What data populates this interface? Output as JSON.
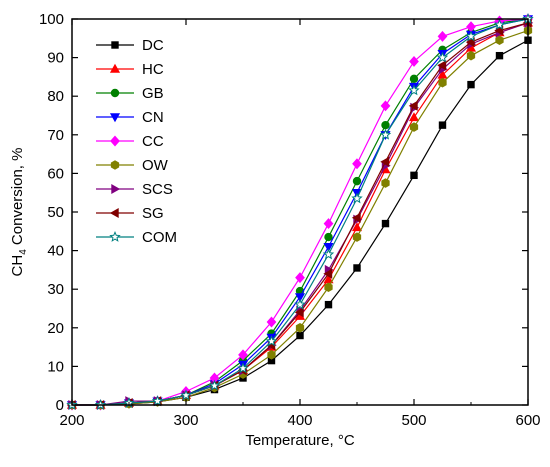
{
  "chart_data": {
    "type": "line",
    "xlabel": "Temperature, °C",
    "ylabel_main": "CH",
    "ylabel_sub": "4",
    "ylabel_rest": " Conversion, %",
    "xlim": [
      200,
      600
    ],
    "ylim": [
      0,
      100
    ],
    "xticks": [
      200,
      300,
      400,
      500,
      600
    ],
    "yticks": [
      0,
      10,
      20,
      30,
      40,
      50,
      60,
      70,
      80,
      90,
      100
    ],
    "grid": false,
    "legend_position": "top-left",
    "x": [
      200,
      225,
      250,
      275,
      300,
      325,
      350,
      375,
      400,
      425,
      450,
      475,
      500,
      525,
      550,
      575,
      600
    ],
    "series": [
      {
        "name": "DC",
        "color": "#000000",
        "marker": "square",
        "values": [
          0,
          0,
          0.3,
          0.8,
          2,
          4,
          7,
          11.5,
          18,
          26,
          35.5,
          47,
          59.5,
          72.5,
          83,
          90.5,
          94.5
        ]
      },
      {
        "name": "HC",
        "color": "#ff0000",
        "marker": "triangle-up",
        "values": [
          0,
          0,
          0.5,
          1,
          2.5,
          5,
          9,
          15,
          23,
          32.5,
          46,
          61,
          74.5,
          85.5,
          92.5,
          96.5,
          99
        ]
      },
      {
        "name": "GB",
        "color": "#008000",
        "marker": "circle",
        "values": [
          0,
          0,
          0.5,
          1,
          2.5,
          6,
          11.5,
          18.5,
          29.5,
          43.5,
          58,
          72.5,
          84.5,
          92,
          96.5,
          99,
          100
        ]
      },
      {
        "name": "CN",
        "color": "#0000ff",
        "marker": "triangle-down",
        "values": [
          0,
          0,
          0.5,
          1,
          2.5,
          5.5,
          10.5,
          17.5,
          28,
          41,
          55,
          70,
          82.5,
          91,
          96,
          98.5,
          100
        ]
      },
      {
        "name": "CC",
        "color": "#ff00ff",
        "marker": "diamond",
        "values": [
          0,
          0,
          0.5,
          1,
          3.5,
          7,
          13,
          21.5,
          33,
          47,
          62.5,
          77.5,
          89,
          95.5,
          98,
          99.5,
          100
        ]
      },
      {
        "name": "OW",
        "color": "#808000",
        "marker": "hexagon",
        "values": [
          0,
          0,
          0.3,
          0.8,
          2,
          4.5,
          8,
          13,
          20,
          30.5,
          43.5,
          57.5,
          72,
          83.5,
          90.5,
          94.5,
          97
        ]
      },
      {
        "name": "SCS",
        "color": "#800080",
        "marker": "triangle-right",
        "values": [
          0,
          0,
          1,
          1,
          2.5,
          5,
          9,
          15.5,
          24.5,
          35,
          48,
          62,
          77,
          87,
          93.5,
          96.5,
          99
        ]
      },
      {
        "name": "SG",
        "color": "#800000",
        "marker": "triangle-left",
        "values": [
          0,
          0,
          0.5,
          1,
          2.5,
          5,
          9,
          15.5,
          24,
          34,
          48.5,
          63,
          77.5,
          88,
          94,
          97,
          99
        ]
      },
      {
        "name": "COM",
        "color": "#008080",
        "marker": "star",
        "values": [
          0,
          0,
          0.5,
          1,
          2.5,
          5,
          9.5,
          16.5,
          26,
          39,
          53.5,
          70,
          81.5,
          90,
          95.5,
          98.5,
          100
        ]
      }
    ]
  }
}
